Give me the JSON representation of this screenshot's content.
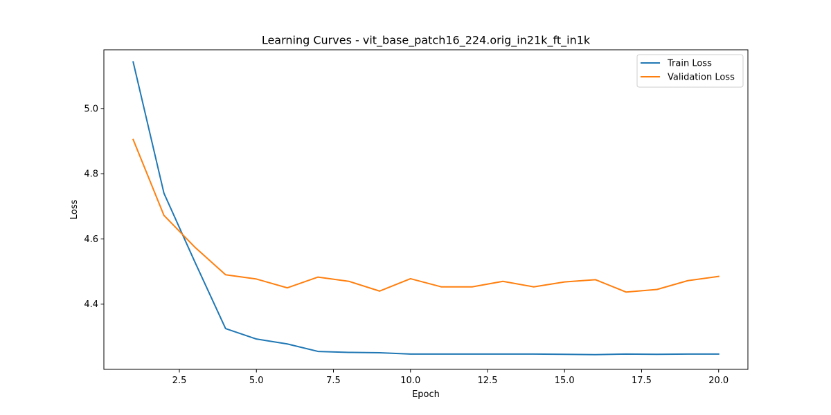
{
  "chart_data": {
    "type": "line",
    "title": "Learning Curves - vit_base_patch16_224.orig_in21k_ft_in1k",
    "xlabel": "Epoch",
    "ylabel": "Loss",
    "xlim": [
      0.05,
      20.95
    ],
    "ylim": [
      4.2,
      5.18
    ],
    "xticks": [
      2.5,
      5.0,
      7.5,
      10.0,
      12.5,
      15.0,
      17.5,
      20.0
    ],
    "xtick_labels": [
      "2.5",
      "5.0",
      "7.5",
      "10.0",
      "12.5",
      "15.0",
      "17.5",
      "20.0"
    ],
    "yticks": [
      4.4,
      4.6,
      4.8,
      5.0
    ],
    "ytick_labels": [
      "4.4",
      "4.6",
      "4.8",
      "5.0"
    ],
    "grid": false,
    "legend_position": "top-right",
    "x": [
      1,
      2,
      3,
      4,
      5,
      6,
      7,
      8,
      9,
      10,
      11,
      12,
      13,
      14,
      15,
      16,
      17,
      18,
      19,
      20
    ],
    "series": [
      {
        "name": "Train Loss",
        "color": "#1f77b4",
        "values": [
          5.143,
          4.74,
          4.53,
          4.325,
          4.293,
          4.278,
          4.255,
          4.252,
          4.251,
          4.247,
          4.247,
          4.247,
          4.247,
          4.247,
          4.246,
          4.245,
          4.247,
          4.246,
          4.247,
          4.247
        ]
      },
      {
        "name": "Validation Loss",
        "color": "#ff7f0e",
        "values": [
          4.905,
          4.672,
          4.575,
          4.49,
          4.477,
          4.45,
          4.483,
          4.47,
          4.44,
          4.478,
          4.453,
          4.453,
          4.47,
          4.453,
          4.468,
          4.475,
          4.437,
          4.445,
          4.472,
          4.485
        ]
      }
    ]
  }
}
